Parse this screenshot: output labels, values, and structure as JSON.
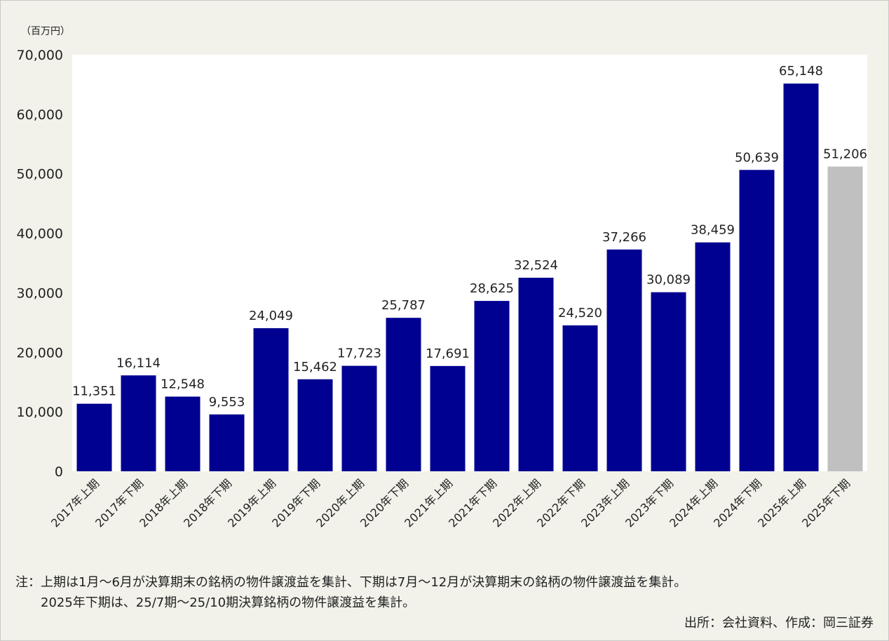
{
  "chart_data": {
    "type": "bar",
    "unit_label": "（百万円）",
    "categories": [
      "2017年上期",
      "2017年下期",
      "2018年上期",
      "2018年下期",
      "2019年上期",
      "2019年下期",
      "2020年上期",
      "2020年下期",
      "2021年上期",
      "2021年下期",
      "2022年上期",
      "2022年下期",
      "2023年上期",
      "2023年下期",
      "2024年上期",
      "2024年下期",
      "2025年上期",
      "2025年下期"
    ],
    "values": [
      11351,
      16114,
      12548,
      9553,
      24049,
      15462,
      17723,
      25787,
      17691,
      28625,
      32524,
      24520,
      37266,
      30089,
      38459,
      50639,
      65148,
      51206
    ],
    "data_labels": [
      "11,351",
      "16,114",
      "12,548",
      "9,553",
      "24,049",
      "15,462",
      "17,723",
      "25,787",
      "17,691",
      "28,625",
      "32,524",
      "24,520",
      "37,266",
      "30,089",
      "38,459",
      "50,639",
      "65,148",
      "51,206"
    ],
    "ylim": [
      0,
      70000
    ],
    "yticks": [
      0,
      10000,
      20000,
      30000,
      40000,
      50000,
      60000,
      70000
    ],
    "ytick_labels": [
      "0",
      "10,000",
      "20,000",
      "30,000",
      "40,000",
      "50,000",
      "60,000",
      "70,000"
    ],
    "grid": false,
    "colors": {
      "bar": "#000091",
      "highlight_bar": "#c0c0c0",
      "plot_bg": "#ffffff"
    },
    "highlight_index": 17
  },
  "notes": {
    "line1": "注：上期は1月～6月が決算期末の銘柄の物件譲渡益を集計、下期は7月～12月が決算期末の銘柄の物件譲渡益を集計。",
    "line2": "2025年下期は、25/7期～25/10期決算銘柄の物件譲渡益を集計。",
    "source": "出所：会社資料、作成：岡三証券"
  }
}
